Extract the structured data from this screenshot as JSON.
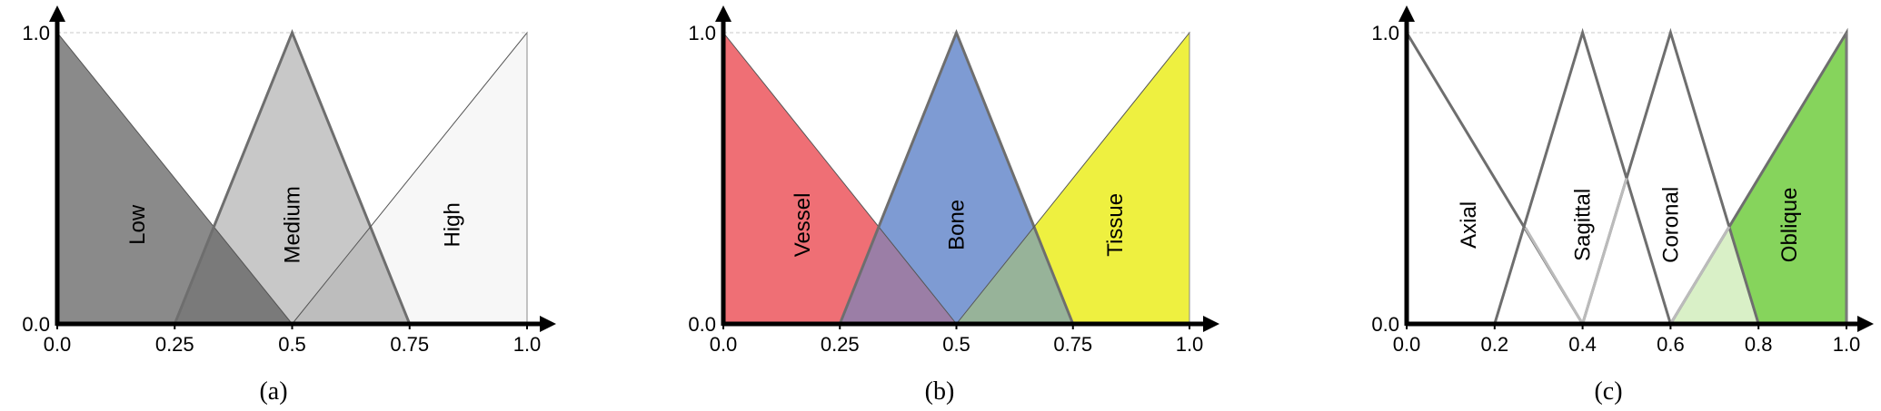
{
  "chart_data": [
    {
      "type": "area",
      "caption": "(a)",
      "x_ticks": [
        "0.0",
        "0.25",
        "0.5",
        "0.75",
        "1.0"
      ],
      "x_tick_values": [
        0,
        0.25,
        0.5,
        0.75,
        1.0
      ],
      "y_ticks": [
        "0.0",
        "1.0"
      ],
      "y_tick_values": [
        0,
        1
      ],
      "xlim": [
        0,
        1
      ],
      "ylim": [
        0,
        1
      ],
      "series": [
        {
          "name": "Low",
          "x": [
            0,
            0,
            0.5
          ],
          "y": [
            0,
            1,
            0
          ],
          "fill": "#8a8a8a",
          "label_x": 0.17,
          "label_y": 0.34
        },
        {
          "name": "Medium",
          "x": [
            0.25,
            0.5,
            0.75
          ],
          "y": [
            0,
            1,
            0
          ],
          "fill": "#c8c8c8",
          "label_x": 0.5,
          "label_y": 0.34
        },
        {
          "name": "High",
          "x": [
            0.5,
            1,
            1
          ],
          "y": [
            0,
            1,
            0
          ],
          "fill": "#f7f7f7",
          "label_x": 0.84,
          "label_y": 0.34
        }
      ]
    },
    {
      "type": "area",
      "caption": "(b)",
      "x_ticks": [
        "0.0",
        "0.25",
        "0.5",
        "0.75",
        "1.0"
      ],
      "x_tick_values": [
        0,
        0.25,
        0.5,
        0.75,
        1.0
      ],
      "y_ticks": [
        "0.0",
        "1.0"
      ],
      "y_tick_values": [
        0,
        1
      ],
      "xlim": [
        0,
        1
      ],
      "ylim": [
        0,
        1
      ],
      "series": [
        {
          "name": "Vessel",
          "x": [
            0,
            0,
            0.5
          ],
          "y": [
            0,
            1,
            0
          ],
          "fill": "#ef6f75",
          "label_x": 0.17,
          "label_y": 0.34
        },
        {
          "name": "Bone",
          "x": [
            0.25,
            0.5,
            0.75
          ],
          "y": [
            0,
            1,
            0
          ],
          "fill": "#7e9bd3",
          "label_x": 0.5,
          "label_y": 0.34
        },
        {
          "name": "Tissue",
          "x": [
            0.5,
            1,
            1
          ],
          "y": [
            0,
            1,
            0
          ],
          "fill": "#eef040",
          "label_x": 0.84,
          "label_y": 0.34
        }
      ]
    },
    {
      "type": "area",
      "caption": "(c)",
      "x_ticks": [
        "0.0",
        "0.2",
        "0.4",
        "0.6",
        "0.8",
        "1.0"
      ],
      "x_tick_values": [
        0,
        0.2,
        0.4,
        0.6,
        0.8,
        1.0
      ],
      "y_ticks": [
        "0.0",
        "1.0"
      ],
      "y_tick_values": [
        0,
        1
      ],
      "xlim": [
        0,
        1
      ],
      "ylim": [
        0,
        1
      ],
      "series": [
        {
          "name": "Axial",
          "x": [
            0,
            0,
            0.4
          ],
          "y": [
            0,
            1,
            0
          ],
          "fill": "none",
          "label_x": 0.14,
          "label_y": 0.34
        },
        {
          "name": "Sagittal",
          "x": [
            0.2,
            0.4,
            0.6
          ],
          "y": [
            0,
            1,
            0
          ],
          "fill": "none",
          "label_x": 0.4,
          "label_y": 0.34
        },
        {
          "name": "Coronal",
          "x": [
            0.4,
            0.6,
            0.8
          ],
          "y": [
            0,
            1,
            0
          ],
          "fill": "none",
          "label_x": 0.6,
          "label_y": 0.34
        },
        {
          "name": "Oblique",
          "x": [
            0.6,
            1,
            1
          ],
          "y": [
            0,
            1,
            0
          ],
          "fill": "#86d45c",
          "label_x": 0.87,
          "label_y": 0.34
        }
      ]
    }
  ]
}
